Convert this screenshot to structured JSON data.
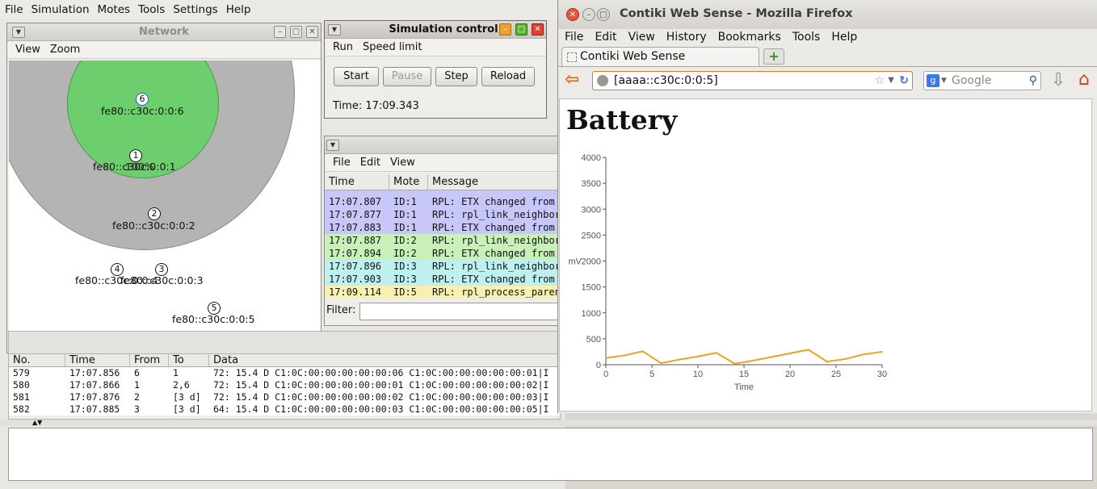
{
  "cooja_menu": [
    "File",
    "Simulation",
    "Motes",
    "Tools",
    "Settings",
    "Help"
  ],
  "network": {
    "title": "Network",
    "menu": [
      "View",
      "Zoom"
    ],
    "motes": [
      {
        "id": "6",
        "label": "fe80::c30c:0:0:6"
      },
      {
        "id": "1",
        "label": "fe80::c30c:0:0:1",
        "overlay": "100%"
      },
      {
        "id": "2",
        "label": "fe80::c30c:0:0:2"
      },
      {
        "id": "4",
        "label": "fe80::c30c:0:0:4"
      },
      {
        "id": "3",
        "label": "fe80::c30c:0:0:3"
      },
      {
        "id": "5",
        "label": "fe80::c30c:0:0:5"
      }
    ]
  },
  "sim_control": {
    "title": "Simulation control",
    "menu": [
      "Run",
      "Speed limit"
    ],
    "buttons": [
      "Start",
      "Pause",
      "Step",
      "Reload"
    ],
    "time": "Time: 17:09.343"
  },
  "mote_output": {
    "menu": [
      "File",
      "Edit",
      "View"
    ],
    "columns": [
      "Time",
      "Mote",
      "Message"
    ],
    "rows": [
      {
        "time": "17:07.807",
        "mote": "ID:1",
        "msg": "RPL: ETX changed from",
        "color": "#c8c8f8"
      },
      {
        "time": "17:07.877",
        "mote": "ID:1",
        "msg": "RPL: rpl_link_neighbor",
        "color": "#c8c8f8"
      },
      {
        "time": "17:07.883",
        "mote": "ID:1",
        "msg": "RPL: ETX changed from",
        "color": "#c8c8f8"
      },
      {
        "time": "17:07.887",
        "mote": "ID:2",
        "msg": "RPL: rpl_link_neighbor",
        "color": "#c8f0b8"
      },
      {
        "time": "17:07.894",
        "mote": "ID:2",
        "msg": "RPL: ETX changed from",
        "color": "#c8f0b8"
      },
      {
        "time": "17:07.896",
        "mote": "ID:3",
        "msg": "RPL: rpl_link_neighbor",
        "color": "#bff0f0"
      },
      {
        "time": "17:07.903",
        "mote": "ID:3",
        "msg": "RPL: ETX changed from",
        "color": "#bff0f0"
      },
      {
        "time": "17:09.114",
        "mote": "ID:5",
        "msg": "RPL: rpl_process_paren",
        "color": "#f8f0b0"
      }
    ],
    "filter_label": "Filter:"
  },
  "radio": {
    "columns": [
      "No.",
      "Time",
      "From",
      "To",
      "Data"
    ],
    "rows": [
      {
        "no": "579",
        "time": "17:07.856",
        "from": "6",
        "to": "1",
        "data": "72: 15.4 D C1:0C:00:00:00:00:00:06 C1:0C:00:00:00:00:00:01|I"
      },
      {
        "no": "580",
        "time": "17:07.866",
        "from": "1",
        "to": "2,6",
        "data": "72: 15.4 D C1:0C:00:00:00:00:00:01 C1:0C:00:00:00:00:00:02|I"
      },
      {
        "no": "581",
        "time": "17:07.876",
        "from": "2",
        "to": "[3 d]",
        "data": "72: 15.4 D C1:0C:00:00:00:00:00:02 C1:0C:00:00:00:00:00:03|I"
      },
      {
        "no": "582",
        "time": "17:07.885",
        "from": "3",
        "to": "[3 d]",
        "data": "64: 15.4 D C1:0C:00:00:00:00:00:03 C1:0C:00:00:00:00:00:05|I"
      }
    ]
  },
  "firefox": {
    "window_title": "Contiki Web Sense - Mozilla Firefox",
    "menu": [
      "File",
      "Edit",
      "View",
      "History",
      "Bookmarks",
      "Tools",
      "Help"
    ],
    "tab_title": "Contiki Web Sense",
    "url": "[aaaa::c30c:0:0:5]",
    "search_placeholder": "Google",
    "page_heading": "Battery"
  },
  "chart_data": {
    "type": "line",
    "title": "",
    "xlabel": "Time",
    "ylabel": "mV",
    "xlim": [
      0,
      30
    ],
    "ylim": [
      0,
      4000
    ],
    "xticks": [
      0,
      5,
      10,
      15,
      20,
      25,
      30
    ],
    "yticks": [
      0,
      500,
      1000,
      1500,
      2000,
      2500,
      3000,
      3500,
      4000
    ],
    "grid": false,
    "color": "#f0a020",
    "x": [
      0,
      2,
      4,
      6,
      8,
      10,
      12,
      14,
      16,
      18,
      20,
      22,
      24,
      26,
      28,
      30
    ],
    "y": [
      130,
      180,
      260,
      30,
      100,
      160,
      230,
      20,
      80,
      150,
      220,
      290,
      60,
      110,
      200,
      250
    ]
  }
}
